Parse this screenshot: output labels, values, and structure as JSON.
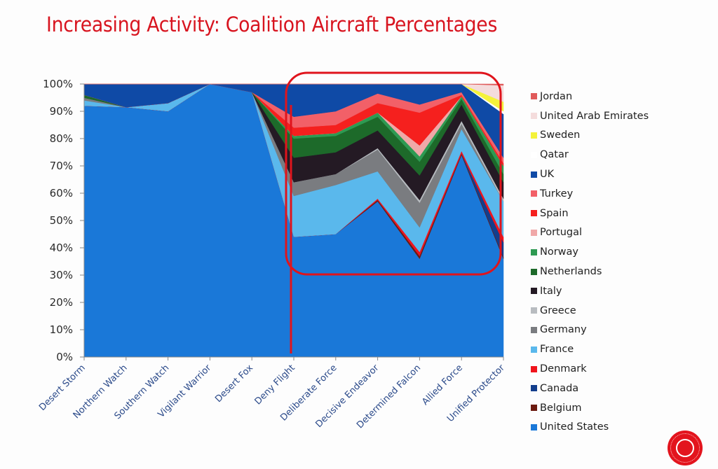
{
  "page": {
    "logo": "red circular seal emblem with globe"
  },
  "chart_data": {
    "type": "area",
    "stacked": true,
    "normalized": true,
    "title": "Increasing Activity: Coalition Aircraft Percentages",
    "xlabel": "",
    "ylabel": "",
    "ylim": [
      0,
      100
    ],
    "yticks": [
      "0%",
      "10%",
      "20%",
      "30%",
      "40%",
      "50%",
      "60%",
      "70%",
      "80%",
      "90%",
      "100%"
    ],
    "grid": false,
    "legend_position": "right",
    "categories": [
      "Desert Storm",
      "Northern Watch",
      "Southern Watch",
      "Vigilant Warrior",
      "Desert Fox",
      "Deny Flight",
      "Deliberate Force",
      "Decisive Endeavor",
      "Determined Falcon",
      "Allied Force",
      "Unified Protector"
    ],
    "series": [
      {
        "name": "United States",
        "color": "#1a78d8",
        "values": [
          92,
          91.5,
          90,
          100,
          97,
          44,
          45,
          57,
          36,
          74,
          36
        ]
      },
      {
        "name": "Belgium",
        "color": "#6b1a10",
        "values": [
          0,
          0,
          0,
          0,
          0,
          0,
          0,
          0.5,
          1,
          0.5,
          0.5
        ]
      },
      {
        "name": "Canada",
        "color": "#133e8c",
        "values": [
          0,
          0,
          0,
          0,
          0,
          0,
          0,
          0,
          0,
          0,
          5.5
        ]
      },
      {
        "name": "Denmark",
        "color": "#f0141c",
        "values": [
          0,
          0,
          0,
          0,
          0,
          0,
          0,
          0.5,
          1.5,
          1,
          2
        ]
      },
      {
        "name": "France",
        "color": "#5ab8ec",
        "values": [
          2,
          0,
          3,
          0,
          0,
          15,
          18,
          10,
          9,
          8,
          13
        ]
      },
      {
        "name": "Germany",
        "color": "#7a7c80",
        "values": [
          1,
          0,
          0,
          0,
          0,
          5,
          4,
          8,
          9,
          2,
          0
        ]
      },
      {
        "name": "Greece",
        "color": "#b8bcc0",
        "values": [
          0,
          0,
          0,
          0,
          0,
          0,
          0,
          0.5,
          1,
          1,
          1
        ]
      },
      {
        "name": "Italy",
        "color": "#241a24",
        "values": [
          0,
          0,
          0,
          0,
          0,
          9,
          8,
          6.5,
          9,
          6,
          6
        ]
      },
      {
        "name": "Netherlands",
        "color": "#1d6a2a",
        "values": [
          1,
          0,
          0,
          0,
          0,
          7,
          6,
          5,
          5,
          2,
          3
        ]
      },
      {
        "name": "Norway",
        "color": "#2e9a52",
        "values": [
          0,
          0,
          0,
          0,
          0,
          1,
          1,
          1.5,
          2,
          1,
          3
        ]
      },
      {
        "name": "Portugal",
        "color": "#f0a8a8",
        "values": [
          0,
          0,
          0,
          0,
          0,
          0,
          0,
          0,
          4,
          0,
          0
        ]
      },
      {
        "name": "Spain",
        "color": "#f5201e",
        "values": [
          0,
          0,
          0,
          0,
          0,
          3,
          3,
          3.5,
          12,
          0.5,
          1
        ]
      },
      {
        "name": "Turkey",
        "color": "#f26068",
        "values": [
          0,
          0,
          0,
          0,
          0,
          4,
          5,
          3.5,
          3,
          1,
          2
        ]
      },
      {
        "name": "UK",
        "color": "#0f4aa6",
        "values": [
          4,
          8.5,
          7,
          0,
          3,
          12,
          10,
          4.5,
          7.5,
          3,
          16
        ]
      },
      {
        "name": "Qatar",
        "color": "#ffffff",
        "values": [
          0,
          0,
          0,
          0,
          0,
          0,
          0,
          0,
          0,
          0,
          1
        ]
      },
      {
        "name": "Sweden",
        "color": "#f4f23a",
        "values": [
          0,
          0,
          0,
          0,
          0,
          0,
          0,
          0,
          0,
          0,
          3.5
        ]
      },
      {
        "name": "United Arab Emirates",
        "color": "#f4dcdc",
        "values": [
          0,
          0,
          0,
          0,
          0,
          0,
          0,
          0,
          0,
          0,
          6
        ]
      },
      {
        "name": "Jordan",
        "color": "#e05a5a",
        "values": [
          0,
          0,
          0,
          0,
          0,
          0,
          0,
          0,
          0,
          0,
          0.5
        ]
      }
    ],
    "annotations": [
      {
        "type": "highlight-box",
        "color": "#e0141c",
        "description": "red rounded box enclosing Deny Flight through Unified Protector, 35%-100%"
      },
      {
        "type": "vertical-line",
        "color": "#e0141c",
        "at_category": "Deny Flight"
      }
    ]
  }
}
